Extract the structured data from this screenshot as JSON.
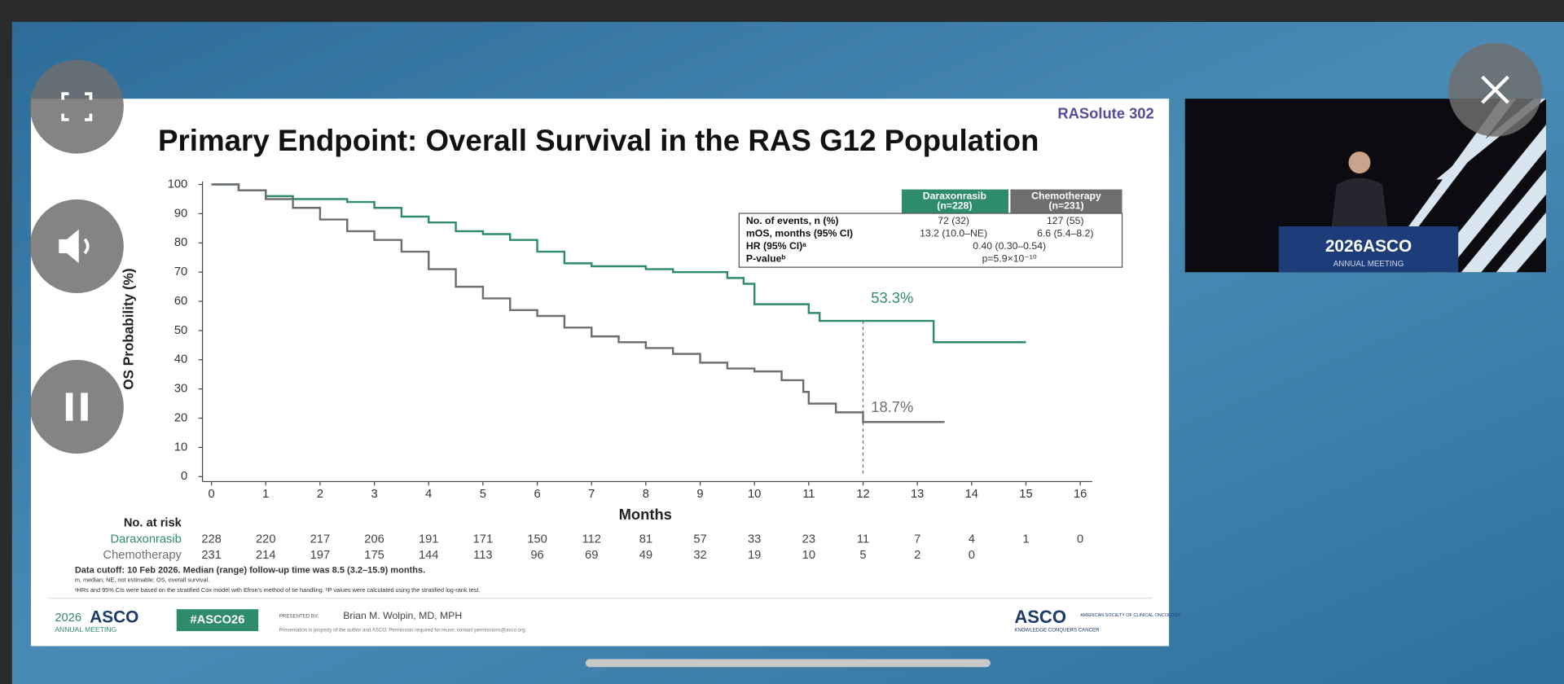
{
  "slide": {
    "brand": "RASolute 302",
    "title": "Primary Endpoint: Overall Survival in the RAS G12 Population",
    "chart": {
      "type": "line",
      "y_label": "OS Probability (%)",
      "x_label": "Months",
      "xlim": [
        0,
        16
      ],
      "xticks": [
        0,
        1,
        2,
        3,
        4,
        5,
        6,
        7,
        8,
        9,
        10,
        11,
        12,
        13,
        14,
        15,
        16
      ],
      "ylim": [
        0,
        100
      ],
      "yticks": [
        0,
        10,
        20,
        30,
        40,
        50,
        60,
        70,
        80,
        90,
        100
      ],
      "reference_x": 12,
      "series": [
        {
          "name": "Daraxonrasib",
          "color": "#2e8b6e",
          "x": [
            0,
            0.5,
            1,
            1.5,
            2,
            2.5,
            3,
            3.5,
            4,
            4.5,
            5,
            5.5,
            6,
            6.5,
            7,
            7.5,
            8,
            8.5,
            9,
            9.5,
            9.8,
            10,
            10.5,
            11,
            11.2,
            12,
            13.2,
            13.3,
            15
          ],
          "values": [
            100,
            98,
            96,
            95,
            95,
            94,
            92,
            89,
            87,
            84,
            83,
            81,
            77,
            73,
            72,
            72,
            71,
            70,
            70,
            68,
            66,
            59,
            59,
            56,
            53.3,
            53.3,
            53.3,
            46,
            46
          ],
          "value_label": "53.3%"
        },
        {
          "name": "Chemotherapy",
          "color": "#6e6e6e",
          "x": [
            0,
            0.5,
            1,
            1.5,
            2,
            2.5,
            3,
            3.5,
            4,
            4.5,
            5,
            5.5,
            6,
            6.5,
            7,
            7.5,
            8,
            8.5,
            9,
            9.5,
            10,
            10.5,
            10.9,
            11,
            11.5,
            12,
            13.5
          ],
          "values": [
            100,
            98,
            95,
            92,
            88,
            84,
            81,
            77,
            71,
            65,
            61,
            57,
            55,
            51,
            48,
            46,
            44,
            42,
            39,
            37,
            36,
            33,
            29,
            25,
            22,
            18.7,
            18.7
          ],
          "value_label": "18.7%"
        }
      ]
    },
    "summary_table": {
      "columns": [
        [
          "Daraxonrasib",
          "(n=228)"
        ],
        [
          "Chemotherapy",
          "(n=231)"
        ]
      ],
      "rows": [
        [
          "No. of events, n (%)",
          "72 (32)",
          "127 (55)"
        ],
        [
          "mOS, months (95% CI)",
          "13.2 (10.0–NE)",
          "6.6 (5.4–8.2)"
        ],
        [
          "HR (95% CI)ᵃ",
          "0.40 (0.30–0.54)"
        ],
        [
          "P-valueᵇ",
          "p=5.9×10⁻¹⁰"
        ]
      ]
    },
    "risk_table": {
      "title": "No. at risk",
      "rows": [
        {
          "name": "Daraxonrasib",
          "counts": [
            "228",
            "220",
            "217",
            "206",
            "191",
            "171",
            "150",
            "112",
            "81",
            "57",
            "33",
            "23",
            "11",
            "7",
            "4",
            "1",
            "0"
          ]
        },
        {
          "name": "Chemotherapy",
          "counts": [
            "231",
            "214",
            "197",
            "175",
            "144",
            "113",
            "96",
            "69",
            "49",
            "32",
            "19",
            "10",
            "5",
            "2",
            "0"
          ]
        }
      ]
    },
    "footnotes": [
      "Data cutoff: 10 Feb 2026. Median (range) follow-up time was 8.5 (3.2–15.9) months.",
      "m, median; NE, not estimable; OS, overall survival.",
      "ᵃHRs and 95% CIs were based on the stratified Cox model with Efron's method of tie handling. ᵇP values were calculated using the stratified log-rank test."
    ],
    "footer": {
      "meeting_year": "2026",
      "meeting_name": "ASCO",
      "meeting_sub": "ANNUAL MEETING",
      "hashtag": "#ASCO26",
      "presented_by_label": "PRESENTED BY:",
      "presenter": "Brian M. Wolpin, MD, MPH",
      "notice": "Presentation is property of the author and ASCO. Permission required for reuse; contact permissions@asco.org.",
      "logo": "ASCO",
      "logo_sub": "AMERICAN SOCIETY OF CLINICAL ONCOLOGY",
      "logo_tag": "KNOWLEDGE CONQUERS CANCER"
    }
  },
  "video": {
    "banner": "2026ASCO",
    "banner_sub": "ANNUAL MEETING"
  }
}
